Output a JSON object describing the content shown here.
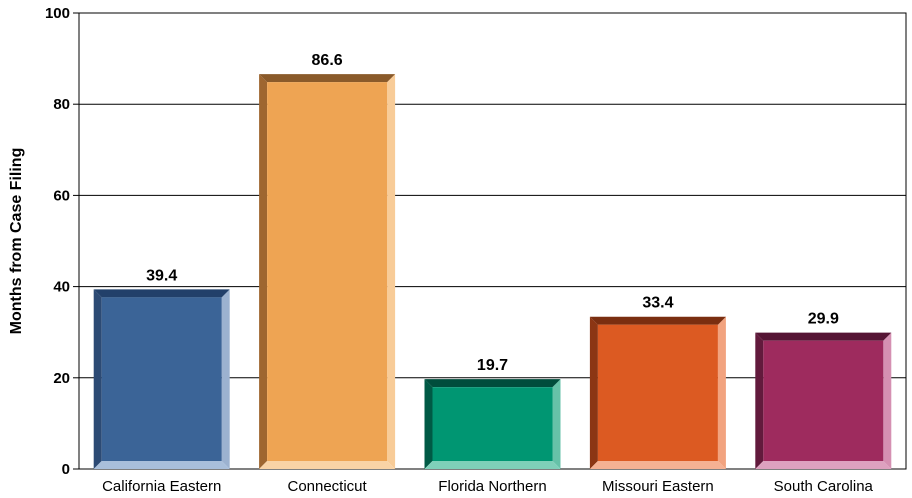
{
  "chart_data": {
    "type": "bar",
    "title": "",
    "xlabel": "",
    "ylabel": "Months from Case Filing",
    "categories": [
      "California Eastern",
      "Connecticut",
      "Florida Northern",
      "Missouri Eastern",
      "South Carolina"
    ],
    "values": [
      39.4,
      86.6,
      19.7,
      33.4,
      29.9
    ],
    "value_labels": [
      "39.4",
      "86.6",
      "19.7",
      "33.4",
      "29.9"
    ],
    "ylim": [
      0,
      100
    ],
    "yticks": [
      "0",
      "20",
      "40",
      "60",
      "80",
      "100"
    ],
    "grid": true,
    "legend": "none",
    "bar_colors": [
      {
        "front": "#3b6497",
        "top": "#22406a",
        "left": "#2c4a74",
        "right": "#9cb2d0",
        "bottom": "#a9bfdb"
      },
      {
        "front": "#eea453",
        "top": "#8a5a2a",
        "left": "#9e6630",
        "right": "#f8cc98",
        "bottom": "#f9d3a6"
      },
      {
        "front": "#009672",
        "top": "#004d3c",
        "left": "#005a45",
        "right": "#66c2a8",
        "bottom": "#7fd0b9"
      },
      {
        "front": "#dc5a22",
        "top": "#7a2e10",
        "left": "#8c3614",
        "right": "#f2a37f",
        "bottom": "#f5b193"
      },
      {
        "front": "#9e2b5e",
        "top": "#551434",
        "left": "#621a3c",
        "right": "#d590b2",
        "bottom": "#dda1bf"
      }
    ]
  }
}
